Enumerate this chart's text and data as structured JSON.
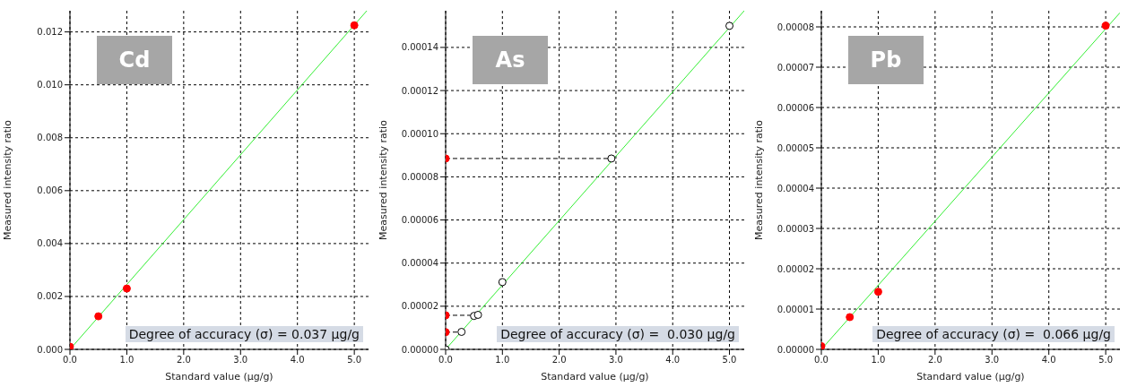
{
  "chart_data": [
    {
      "type": "scatter",
      "title": "Cd",
      "xlabel": "Standard value (µg/g)",
      "ylabel": "Measured intensity ratio",
      "annotations": [
        "Degree of accuracy (σ) = 0.037 µg/g"
      ],
      "xlim": [
        0,
        5.25
      ],
      "ylim": [
        0,
        0.0128
      ],
      "xticks": [
        {
          "value": 0,
          "label": "0.0"
        },
        {
          "value": 1,
          "label": "1.0"
        },
        {
          "value": 2,
          "label": "2.0"
        },
        {
          "value": 3,
          "label": "3.0"
        },
        {
          "value": 4,
          "label": "4.0"
        },
        {
          "value": 5,
          "label": "5.0"
        }
      ],
      "yticks": [
        {
          "value": 0,
          "label": "0.000"
        },
        0.002,
        0.004,
        0.006,
        0.008,
        {
          "value": 0.01,
          "label": "0.010"
        },
        0.012
      ],
      "grid": true,
      "marker": "circle",
      "series": [
        {
          "type": "line",
          "color": "#33ee33",
          "marker": "none",
          "line_style": "solid",
          "x": [
            0,
            5.22
          ],
          "values": [
            0,
            0.0128
          ]
        },
        {
          "color": "#ff0000",
          "x": [
            0,
            0.5,
            1.0,
            5.0
          ],
          "values": [
            0.0001,
            0.00125,
            0.0023,
            0.01225
          ]
        }
      ]
    },
    {
      "type": "scatter",
      "title": "As",
      "xlabel": "Standard value (µg/g)",
      "ylabel": "Measured intensity ratio",
      "annotations": [
        "Degree of accuracy (σ) =  0.030 µg/g"
      ],
      "xlim": [
        0,
        5.26
      ],
      "ylim": [
        0,
        0.000157
      ],
      "xticks": [
        {
          "value": 0,
          "label": "0.0"
        },
        {
          "value": 1,
          "label": "1.0"
        },
        {
          "value": 2,
          "label": "2.0"
        },
        {
          "value": 3,
          "label": "3.0"
        },
        {
          "value": 4,
          "label": "4.0"
        },
        {
          "value": 5,
          "label": "5.0"
        }
      ],
      "yticks": [
        {
          "value": 0,
          "label": "0.00000"
        },
        {
          "value": 2e-05,
          "label": "0.00002"
        },
        {
          "value": 4e-05,
          "label": "0.00004"
        },
        {
          "value": 6e-05,
          "label": "0.00006"
        },
        {
          "value": 8e-05,
          "label": "0.00008"
        },
        {
          "value": 0.0001,
          "label": "0.00010"
        },
        {
          "value": 0.00012,
          "label": "0.00012"
        },
        {
          "value": 0.00014,
          "label": "0.00014"
        }
      ],
      "grid": true,
      "marker": "circle",
      "series": [
        {
          "type": "line",
          "color": "#33ee33",
          "marker": "none",
          "line_style": "solid",
          "x": [
            0,
            5.26
          ],
          "values": [
            0,
            0.000157
          ]
        },
        {
          "type": "line",
          "color": "#000000",
          "marker": "none",
          "line_style": "dashed",
          "x": [
            0,
            2.92
          ],
          "values": [
            8.85e-05,
            8.85e-05
          ]
        },
        {
          "type": "line",
          "color": "#000000",
          "marker": "none",
          "line_style": "dashed",
          "x": [
            0,
            0.5
          ],
          "values": [
            1.58e-05,
            1.58e-05
          ]
        },
        {
          "type": "line",
          "color": "#000000",
          "marker": "none",
          "line_style": "dashed",
          "x": [
            0,
            0.28
          ],
          "values": [
            8e-06,
            8e-06
          ]
        },
        {
          "color": "#ffffff",
          "x": [
            0,
            0.28,
            0.5,
            0.57,
            1.0,
            2.92,
            5.0
          ],
          "values": [
            0,
            8.1e-06,
            1.55e-05,
            1.6e-05,
            3.12e-05,
            8.85e-05,
            0.00015
          ]
        },
        {
          "color": "#ff0000",
          "x": [
            0,
            0,
            0
          ],
          "values": [
            8.85e-05,
            1.58e-05,
            8e-06
          ]
        }
      ]
    },
    {
      "type": "scatter",
      "title": "Pb",
      "xlabel": "Standard value (µg/g)",
      "ylabel": "Measured intensity ratio",
      "annotations": [
        "Degree of accuracy (σ) =  0.066 µg/g"
      ],
      "xlim": [
        0,
        5.25
      ],
      "ylim": [
        0,
        8.4e-05
      ],
      "xticks": [
        {
          "value": 0,
          "label": "0.0"
        },
        {
          "value": 1,
          "label": "1.0"
        },
        {
          "value": 2,
          "label": "2.0"
        },
        {
          "value": 3,
          "label": "3.0"
        },
        {
          "value": 4,
          "label": "4.0"
        },
        {
          "value": 5,
          "label": "5.0"
        }
      ],
      "yticks": [
        {
          "value": 0,
          "label": "0.00000"
        },
        {
          "value": 1e-05,
          "label": "0.00001"
        },
        {
          "value": 2e-05,
          "label": "0.00002"
        },
        {
          "value": 3e-05,
          "label": "0.00003"
        },
        {
          "value": 4e-05,
          "label": "0.00004"
        },
        {
          "value": 5e-05,
          "label": "0.00005"
        },
        {
          "value": 6e-05,
          "label": "0.00006"
        },
        {
          "value": 7e-05,
          "label": "0.00007"
        },
        {
          "value": 8e-05,
          "label": "0.00008"
        }
      ],
      "grid": true,
      "marker": "circle",
      "series": [
        {
          "type": "line",
          "color": "#33ee33",
          "marker": "none",
          "line_style": "solid",
          "x": [
            0,
            5.25
          ],
          "values": [
            0,
            8.35e-05
          ]
        },
        {
          "color": "#ff0000",
          "x": [
            0,
            0.5,
            1.0,
            5.0
          ],
          "values": [
            8e-07,
            8e-06,
            1.43e-05,
            8.03e-05
          ]
        }
      ]
    }
  ]
}
